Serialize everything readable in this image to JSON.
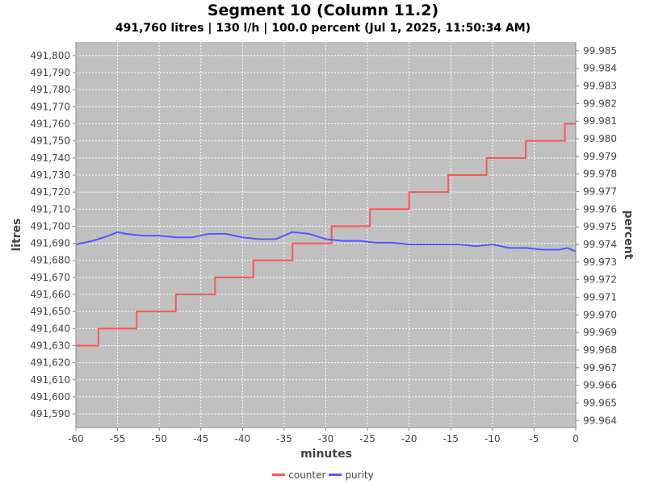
{
  "chart_data": {
    "type": "line",
    "title": "Segment 10 (Column 11.2)",
    "subtitle": "491,760 litres | 130 l/h | 100.0 percent (Jul 1, 2025, 11:50:34 AM)",
    "xlabel": "minutes",
    "ylabel_left": "litres",
    "ylabel_right": "percent",
    "xlim": [
      -60,
      0
    ],
    "ylim_left": [
      491582,
      491808
    ],
    "ylim_right": [
      99.9636,
      99.9855
    ],
    "x_ticks": [
      -60,
      -55,
      -50,
      -45,
      -40,
      -35,
      -30,
      -25,
      -20,
      -15,
      -10,
      -5,
      0
    ],
    "y_ticks_left": [
      491590,
      491600,
      491610,
      491620,
      491630,
      491640,
      491650,
      491660,
      491670,
      491680,
      491690,
      491700,
      491710,
      491720,
      491730,
      491740,
      491750,
      491760,
      491770,
      491780,
      491790,
      491800
    ],
    "y_ticks_left_labels": [
      "491,590",
      "491,600",
      "491,610",
      "491,620",
      "491,630",
      "491,640",
      "491,650",
      "491,660",
      "491,670",
      "491,680",
      "491,690",
      "491,700",
      "491,710",
      "491,720",
      "491,730",
      "491,740",
      "491,750",
      "491,760",
      "491,770",
      "491,780",
      "491,790",
      "491,800"
    ],
    "y_ticks_right": [
      99.964,
      99.965,
      99.966,
      99.967,
      99.968,
      99.969,
      99.97,
      99.971,
      99.972,
      99.973,
      99.974,
      99.975,
      99.976,
      99.977,
      99.978,
      99.979,
      99.98,
      99.981,
      99.982,
      99.983,
      99.984,
      99.985
    ],
    "grid": true,
    "legend_position": "bottom-center",
    "background_color": "#c0c0c0",
    "grid_color": "#ffffff",
    "series": [
      {
        "name": "counter",
        "axis": "left",
        "color": "#ff5555",
        "step": true,
        "x": [
          -60,
          -57.3,
          -52.7,
          -48,
          -43.3,
          -38.7,
          -34,
          -29.3,
          -24.7,
          -20,
          -15.3,
          -10.7,
          -6,
          -1.3,
          0
        ],
        "values": [
          491630,
          491640,
          491650,
          491660,
          491670,
          491680,
          491690,
          491700,
          491710,
          491720,
          491730,
          491740,
          491750,
          491760,
          491760
        ]
      },
      {
        "name": "purity",
        "axis": "right",
        "color": "#5555ff",
        "x": [
          -60,
          -58,
          -56,
          -55,
          -54,
          -52,
          -50,
          -48,
          -46,
          -44,
          -42,
          -40,
          -38,
          -36,
          -34,
          -32,
          -30,
          -28,
          -26,
          -24,
          -22,
          -20,
          -18,
          -16,
          -14,
          -12,
          -10,
          -8,
          -6,
          -4,
          -2,
          -1,
          0
        ],
        "values": [
          99.974,
          99.9742,
          99.9745,
          99.9747,
          99.9746,
          99.9745,
          99.9745,
          99.9744,
          99.9744,
          99.9746,
          99.9746,
          99.9744,
          99.9743,
          99.9743,
          99.9747,
          99.9746,
          99.9743,
          99.9742,
          99.9742,
          99.9741,
          99.9741,
          99.974,
          99.974,
          99.974,
          99.974,
          99.9739,
          99.974,
          99.9738,
          99.9738,
          99.9737,
          99.9737,
          99.9738,
          99.9736
        ]
      }
    ]
  }
}
